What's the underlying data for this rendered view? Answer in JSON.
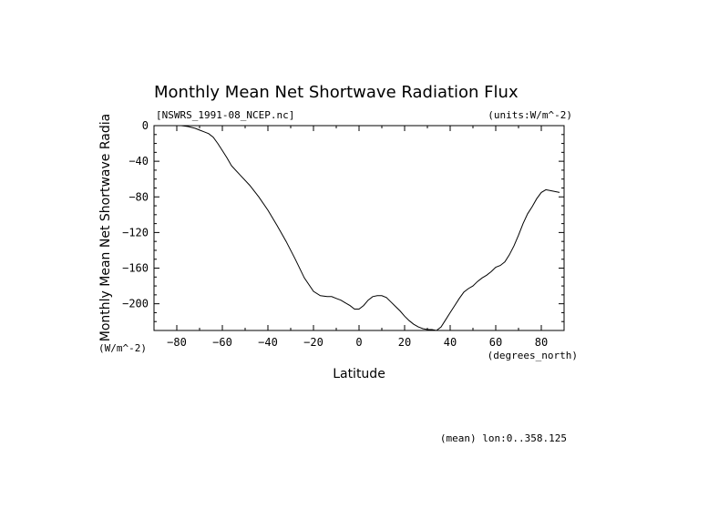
{
  "chart_data": {
    "type": "line",
    "title": "Monthly Mean Net Shortwave Radiation Flux",
    "file_label": "[NSWRS_1991-08_NCEP.nc]",
    "units_note": "(units:W/m^-2)",
    "xlabel": "Latitude",
    "xunits": "(degrees_north)",
    "ylabel": "Monthly Mean Net Shortwave Radia",
    "yunits": "(W/m^-2)",
    "footnote": "(mean) lon:0..358.125",
    "xlim": [
      -90,
      90
    ],
    "ylim": [
      -230,
      0
    ],
    "x_ticks": [
      -80,
      -60,
      -40,
      -20,
      0,
      20,
      40,
      60,
      80
    ],
    "y_ticks": [
      0,
      -40,
      -80,
      -120,
      -160,
      -200
    ],
    "x_tick_labels": [
      "−80",
      "−60",
      "−40",
      "−20",
      "0",
      "20",
      "40",
      "60",
      "80"
    ],
    "y_tick_labels": [
      "0",
      "−40",
      "−80",
      "−120",
      "−160",
      "−200"
    ],
    "series": [
      {
        "x": [
          -78,
          -75,
          -72,
          -70,
          -68,
          -66,
          -64,
          -62,
          -60,
          -58,
          -56,
          -52,
          -48,
          -44,
          -40,
          -36,
          -32,
          -28,
          -24,
          -20,
          -17,
          -14,
          -12,
          -10,
          -8,
          -6,
          -4,
          -2,
          0,
          2,
          4,
          6,
          8,
          10,
          12,
          14,
          16,
          18,
          20,
          22,
          24,
          26,
          28,
          30,
          32,
          34,
          36,
          38,
          40,
          42,
          44,
          46,
          48,
          50,
          52,
          54,
          56,
          58,
          60,
          62,
          64,
          66,
          68,
          70,
          72,
          74,
          76,
          78,
          80,
          82,
          84,
          86,
          88
        ],
        "y": [
          0,
          -1,
          -3,
          -5,
          -7,
          -9,
          -13,
          -20,
          -28,
          -36,
          -45,
          -56,
          -67,
          -80,
          -95,
          -112,
          -130,
          -150,
          -171,
          -186,
          -191,
          -192,
          -192,
          -194,
          -196,
          -199,
          -202,
          -206,
          -206,
          -202,
          -196,
          -192,
          -191,
          -191,
          -193,
          -198,
          -203,
          -208,
          -214,
          -219,
          -223,
          -226,
          -228,
          -229,
          -229,
          -230,
          -226,
          -218,
          -210,
          -202,
          -194,
          -187,
          -183,
          -180,
          -175,
          -171,
          -168,
          -164,
          -159,
          -157,
          -153,
          -145,
          -135,
          -123,
          -110,
          -99,
          -91,
          -82,
          -75,
          -72,
          -73,
          -74,
          -75
        ]
      }
    ]
  }
}
